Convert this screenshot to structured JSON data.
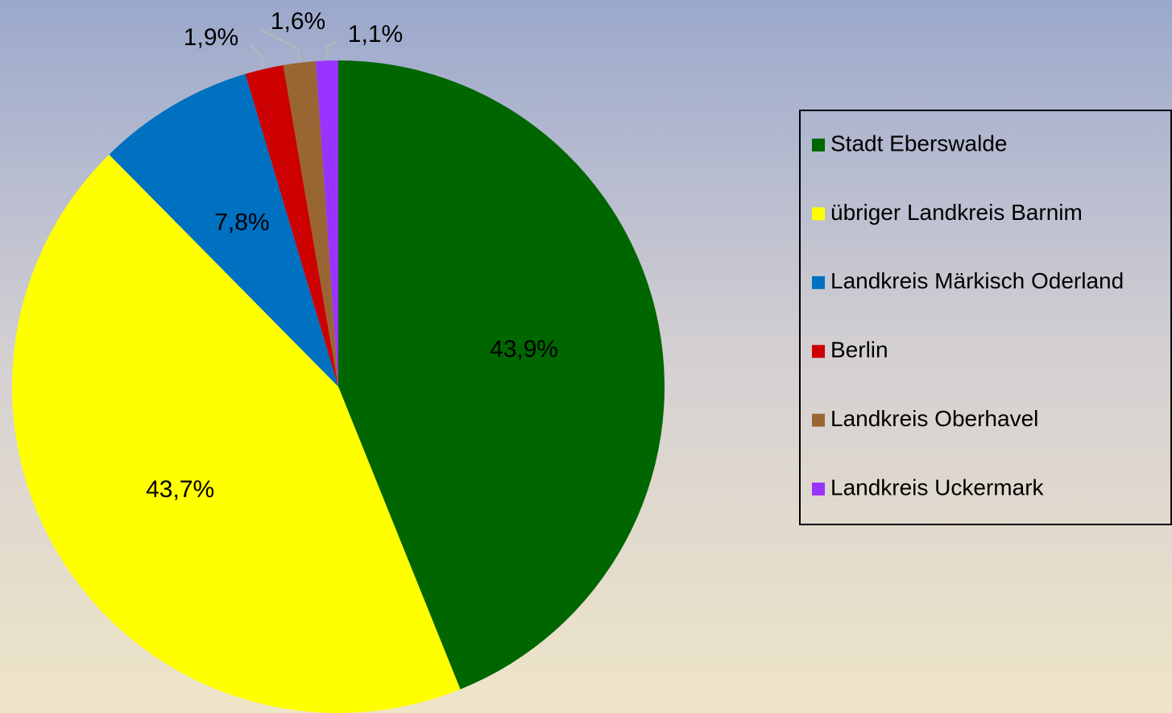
{
  "chart_data": {
    "type": "pie",
    "categories": [
      "Stadt Eberswalde",
      "übriger Landkreis Barnim",
      "Landkreis Märkisch Oderland",
      "Berlin",
      "Landkreis Oberhavel",
      "Landkreis Uckermark"
    ],
    "values": [
      43.9,
      43.7,
      7.8,
      1.9,
      1.6,
      1.1
    ],
    "value_labels": [
      "43,9%",
      "43,7%",
      "7,8%",
      "1,9%",
      "1,6%",
      "1,1%"
    ],
    "colors": [
      "#006600",
      "#ffff00",
      "#0070c0",
      "#cc0000",
      "#996633",
      "#9933ff"
    ],
    "legend": "right"
  }
}
